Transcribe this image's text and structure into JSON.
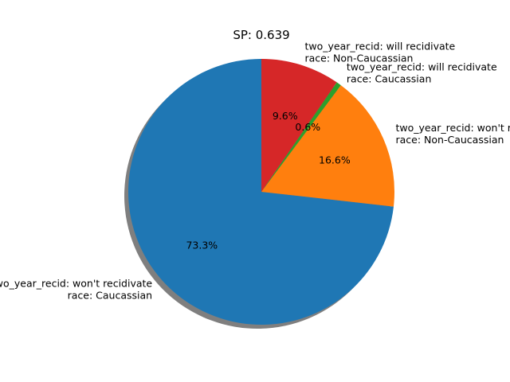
{
  "chart_data": {
    "type": "pie",
    "title": "SP: 0.639",
    "shadow": true,
    "start_angle_deg": 90,
    "direction": "counterclockwise",
    "slices": [
      {
        "label_lines": [
          "two_year_recid: won't recidivate",
          "race: Caucassian"
        ],
        "value": 73.3,
        "pct_label": "73.3%",
        "color": "#1f77b4"
      },
      {
        "label_lines": [
          "two_year_recid: won't recidivate",
          "race: Non-Caucassian"
        ],
        "value": 16.6,
        "pct_label": "16.6%",
        "color": "#ff7f0e"
      },
      {
        "label_lines": [
          "two_year_recid: will recidivate",
          "race: Caucassian"
        ],
        "value": 0.6,
        "pct_label": "0.6%",
        "color": "#2ca02c"
      },
      {
        "label_lines": [
          "two_year_recid: will recidivate",
          "race: Non-Caucassian"
        ],
        "value": 9.6,
        "pct_label": "9.6%",
        "color": "#d62728"
      }
    ]
  }
}
